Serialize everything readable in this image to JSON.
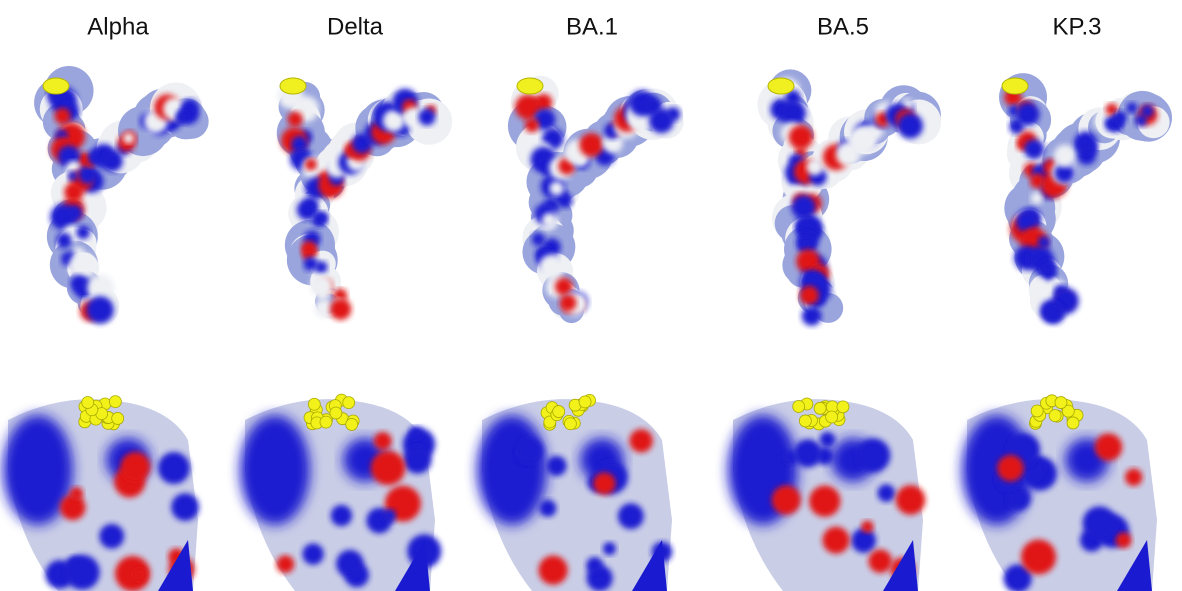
{
  "labels": [
    "Alpha",
    "Delta",
    "BA.1",
    "BA.5",
    "KP.3"
  ]
}
